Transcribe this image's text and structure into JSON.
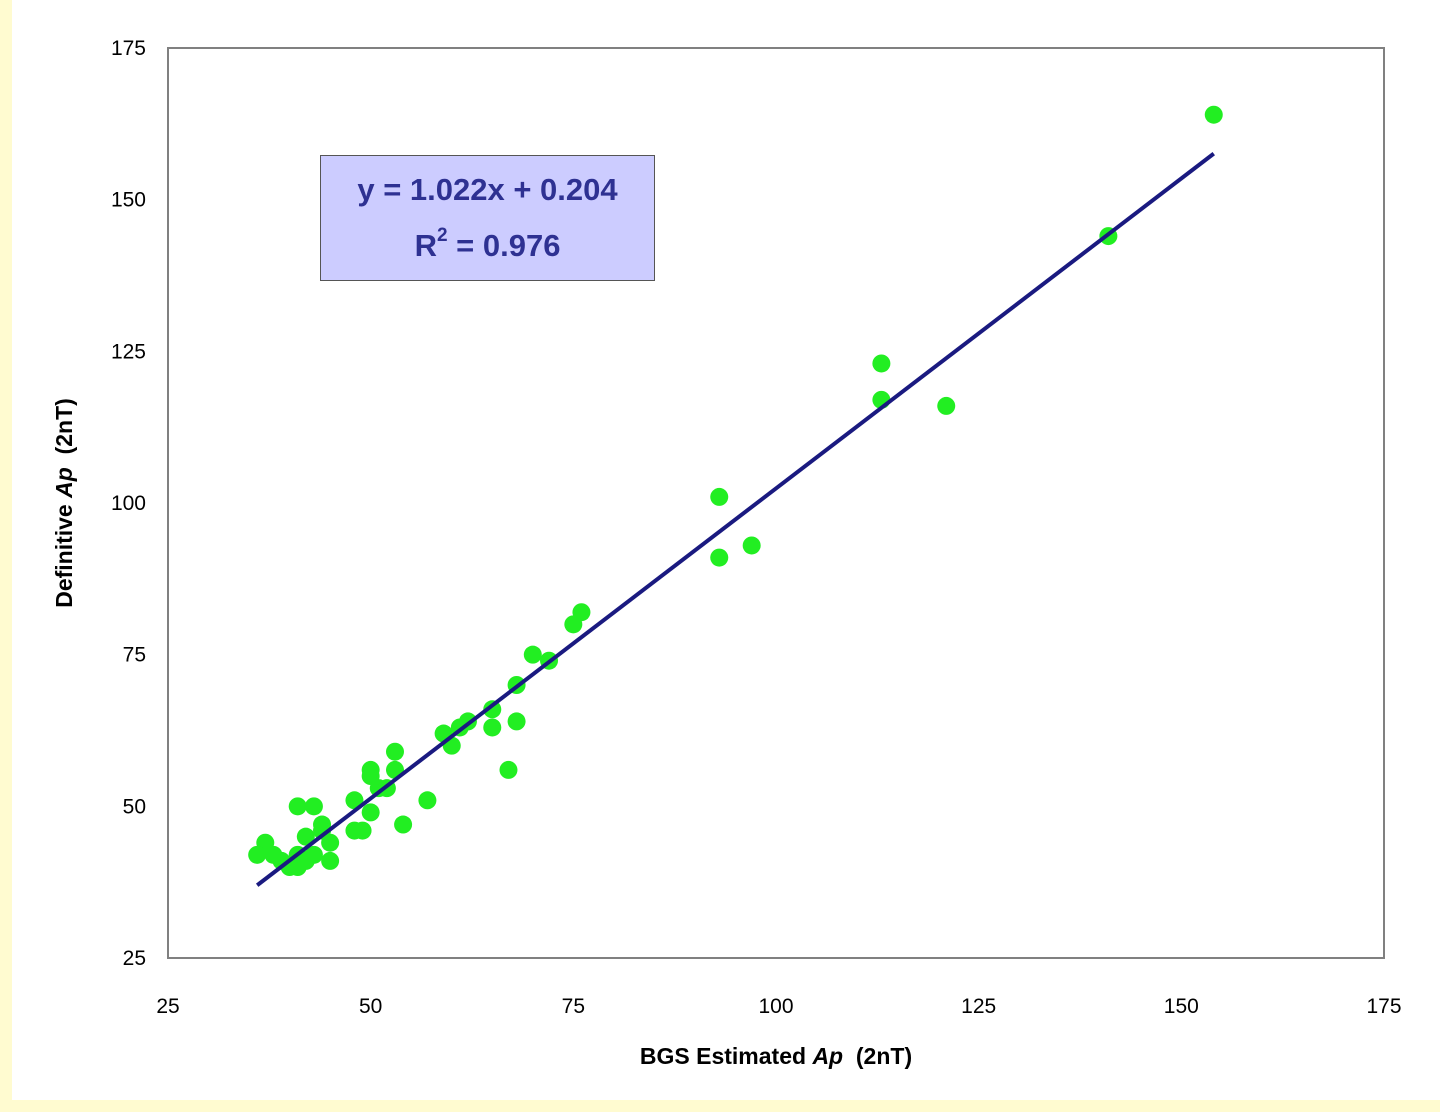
{
  "chart_data": {
    "type": "scatter",
    "xlabel_parts": [
      "BGS Estimated ",
      "Ap",
      "  (2nT)"
    ],
    "ylabel_parts": [
      "Definitive ",
      "Ap",
      "  (2nT)"
    ],
    "xlim": [
      25,
      175
    ],
    "ylim": [
      25,
      175
    ],
    "xticks": [
      "25",
      "50",
      "75",
      "100",
      "125",
      "150",
      "175"
    ],
    "yticks": [
      "25",
      "50",
      "75",
      "100",
      "125",
      "150",
      "175"
    ],
    "grid": false,
    "legend": "none",
    "marker_color": "#22ee22",
    "line_color": "#1a1a80",
    "trendline": {
      "slope": 1.022,
      "intercept": 0.204,
      "x_range": [
        36,
        154
      ],
      "equation": "y = 1.022x + 0.204",
      "r2_prefix": "R",
      "r2_sup": "2",
      "r2_value": " = 0.976"
    },
    "points": [
      [
        154,
        164
      ],
      [
        141,
        144
      ],
      [
        113,
        123
      ],
      [
        113,
        117
      ],
      [
        121,
        116
      ],
      [
        93,
        101
      ],
      [
        93,
        91
      ],
      [
        97,
        93
      ],
      [
        76,
        82
      ],
      [
        75,
        80
      ],
      [
        70,
        75
      ],
      [
        72,
        74
      ],
      [
        68,
        70
      ],
      [
        65,
        66
      ],
      [
        65,
        63
      ],
      [
        68,
        64
      ],
      [
        62,
        64
      ],
      [
        61,
        63
      ],
      [
        59,
        62
      ],
      [
        60,
        60
      ],
      [
        67,
        56
      ],
      [
        57,
        51
      ],
      [
        54,
        47
      ],
      [
        53,
        59
      ],
      [
        53,
        56
      ],
      [
        50,
        56
      ],
      [
        50,
        55
      ],
      [
        51,
        53
      ],
      [
        52,
        53
      ],
      [
        48,
        51
      ],
      [
        50,
        49
      ],
      [
        48,
        46
      ],
      [
        49,
        46
      ],
      [
        41,
        50
      ],
      [
        43,
        50
      ],
      [
        44,
        47
      ],
      [
        44,
        46
      ],
      [
        42,
        45
      ],
      [
        45,
        44
      ],
      [
        43,
        42
      ],
      [
        45,
        41
      ],
      [
        41,
        42
      ],
      [
        42,
        41
      ],
      [
        37,
        44
      ],
      [
        36,
        42
      ],
      [
        38,
        42
      ],
      [
        39,
        41
      ],
      [
        40,
        40
      ],
      [
        41,
        40
      ]
    ]
  }
}
